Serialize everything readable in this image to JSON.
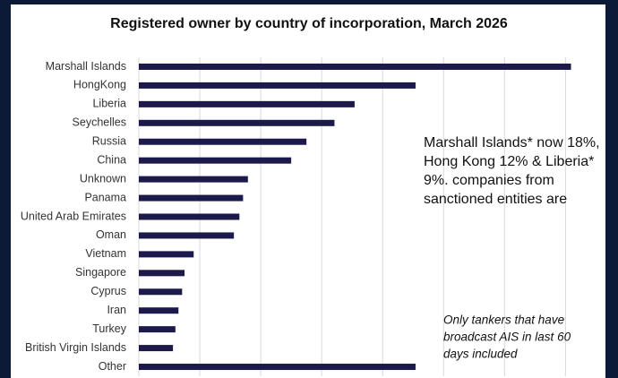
{
  "chart_data": {
    "type": "bar",
    "orientation": "horizontal",
    "title": "Registered owner by country of incorporation, March 2026",
    "categories": [
      "Marshall Islands",
      "HongKong",
      "Liberia",
      "Seychelles",
      "Russia",
      "China",
      "Unknown",
      "Panama",
      "United Arab Emirates",
      "Oman",
      "Vietnam",
      "Singapore",
      "Cyprus",
      "Iran",
      "Turkey",
      "British Virgin Islands",
      "Other"
    ],
    "values": [
      7.09,
      4.54,
      3.54,
      3.21,
      2.75,
      2.5,
      1.79,
      1.71,
      1.65,
      1.56,
      0.9,
      0.75,
      0.71,
      0.65,
      0.6,
      0.56,
      4.54
    ],
    "color": "#1c1a4a",
    "xlim": [
      0,
      7.2
    ],
    "xticks": [
      0,
      1,
      2,
      3,
      4,
      5,
      6,
      7
    ],
    "grid": true,
    "annotations": [
      {
        "lines": [
          "Marshall Islands* now 18%,",
          "Hong Kong 12% & Liberia*",
          "9%. companies from",
          "sanctioned entities are"
        ],
        "italic": false
      },
      {
        "lines": [
          "Only tankers that have",
          "broadcast AIS in last 60",
          "days included"
        ],
        "italic": true
      }
    ]
  }
}
